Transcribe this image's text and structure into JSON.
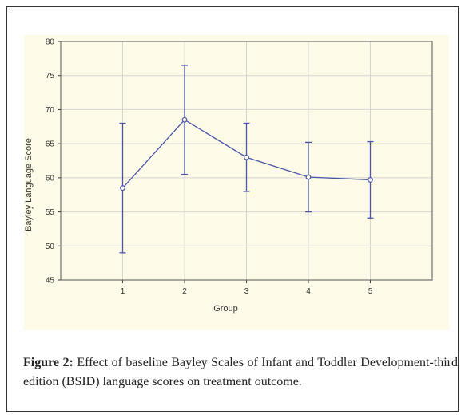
{
  "figure": {
    "label": "Figure 2:",
    "caption": "Effect of baseline Bayley Scales of Infant and Toddler Development-third edition (BSID) language scores on treatment outcome."
  },
  "chart_data": {
    "type": "line",
    "xlabel": "Group",
    "ylabel": "Bayley Language Score",
    "x": [
      1,
      2,
      3,
      4,
      5
    ],
    "x_ticks": [
      "1",
      "2",
      "3",
      "4",
      "5"
    ],
    "xlim": [
      0,
      6
    ],
    "ylim": [
      45,
      80
    ],
    "y_ticks": [
      "45",
      "50",
      "55",
      "60",
      "65",
      "70",
      "75",
      "80"
    ],
    "grid": true,
    "series": [
      {
        "values": [
          58.5,
          68.5,
          63.0,
          60.1,
          59.7
        ],
        "error_low": [
          49.0,
          60.5,
          58.0,
          55.0,
          54.1
        ],
        "error_high": [
          68.0,
          76.5,
          68.0,
          65.2,
          65.3
        ],
        "color": "#4a55a8"
      }
    ]
  }
}
